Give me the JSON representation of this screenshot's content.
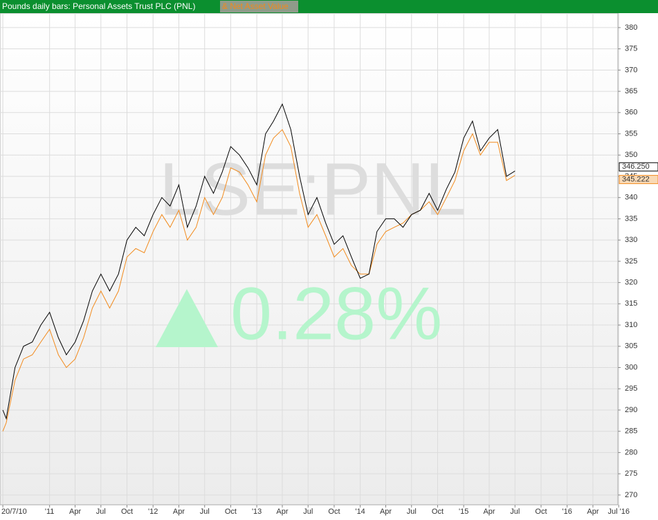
{
  "chart_data": {
    "type": "line",
    "watermark": "LSE:PNL",
    "change": "0.28%",
    "x": [
      "2010-07-20",
      "2010-08",
      "2010-09",
      "2010-10",
      "2010-11",
      "2010-12",
      "2011-01",
      "2011-02",
      "2011-03",
      "2011-04",
      "2011-05",
      "2011-06",
      "2011-07",
      "2011-08",
      "2011-09",
      "2011-10",
      "2011-11",
      "2011-12",
      "2012-01",
      "2012-02",
      "2012-03",
      "2012-04",
      "2012-05",
      "2012-06",
      "2012-07",
      "2012-08",
      "2012-09",
      "2012-10",
      "2012-11",
      "2012-12",
      "2013-01",
      "2013-02",
      "2013-03",
      "2013-04",
      "2013-05",
      "2013-06",
      "2013-07",
      "2013-08",
      "2013-09",
      "2013-10",
      "2013-11",
      "2013-12",
      "2014-01",
      "2014-02",
      "2014-03",
      "2014-04",
      "2014-05",
      "2014-06",
      "2014-07",
      "2014-08",
      "2014-09",
      "2014-10",
      "2014-11",
      "2014-12",
      "2015-01",
      "2015-02",
      "2015-03",
      "2015-04",
      "2015-05",
      "2015-06",
      "2015-07"
    ],
    "series": [
      {
        "name": "Pounds daily bars: Personal Assets Trust PLC (PNL)",
        "color": "#000000",
        "values": [
          290,
          288,
          300,
          305,
          306,
          310,
          313,
          307,
          303,
          306,
          311,
          318,
          322,
          318,
          322,
          330,
          333,
          331,
          336,
          340,
          338,
          343,
          333,
          338,
          345,
          341,
          346,
          352,
          350,
          347,
          343,
          355,
          358,
          362,
          356,
          345,
          336,
          340,
          334,
          329,
          331,
          326,
          321,
          322,
          332,
          335,
          335,
          333,
          336,
          337,
          341,
          337,
          342,
          346,
          354,
          358,
          351,
          354,
          356,
          345,
          346.25
        ],
        "last_label": "346.250"
      },
      {
        "name": "& Net Asset Value",
        "color": "#f28a1c",
        "values": [
          285,
          287,
          297,
          302,
          303,
          306,
          309,
          303,
          300,
          302,
          307,
          314,
          318,
          314,
          318,
          326,
          328,
          327,
          332,
          336,
          333,
          337,
          330,
          333,
          340,
          336,
          340,
          347,
          346,
          343,
          339,
          350,
          354,
          356,
          352,
          341,
          333,
          336,
          331,
          326,
          328,
          324,
          322,
          322,
          329,
          332,
          333,
          334,
          336,
          337,
          339,
          336,
          340,
          344,
          351,
          355,
          350,
          353,
          353,
          344,
          345.222
        ],
        "last_label": "345.222"
      }
    ],
    "xlim": [
      "2010-07-10",
      "2016-06-28"
    ],
    "xticks": [
      {
        "value": "2010-07-20",
        "label": "20/7/10"
      },
      {
        "value": "2011-01",
        "label": "'11"
      },
      {
        "value": "2011-04",
        "label": "Apr"
      },
      {
        "value": "2011-07",
        "label": "Jul"
      },
      {
        "value": "2011-10",
        "label": "Oct"
      },
      {
        "value": "2012-01",
        "label": "'12"
      },
      {
        "value": "2012-04",
        "label": "Apr"
      },
      {
        "value": "2012-07",
        "label": "Jul"
      },
      {
        "value": "2012-10",
        "label": "Oct"
      },
      {
        "value": "2013-01",
        "label": "'13"
      },
      {
        "value": "2013-04",
        "label": "Apr"
      },
      {
        "value": "2013-07",
        "label": "Jul"
      },
      {
        "value": "2013-10",
        "label": "Oct"
      },
      {
        "value": "2014-01",
        "label": "'14"
      },
      {
        "value": "2014-04",
        "label": "Apr"
      },
      {
        "value": "2014-07",
        "label": "Jul"
      },
      {
        "value": "2014-10",
        "label": "Oct"
      },
      {
        "value": "2015-01",
        "label": "'15"
      },
      {
        "value": "2015-04",
        "label": "Apr"
      },
      {
        "value": "2015-07",
        "label": "Jul"
      },
      {
        "value": "2015-10",
        "label": "Oct"
      },
      {
        "value": "2016-01",
        "label": "'16"
      },
      {
        "value": "2016-04",
        "label": "Apr"
      },
      {
        "value": "2016-07",
        "label": "Jul '16"
      }
    ],
    "ylim": [
      267.7,
      383.4
    ],
    "yticks": [
      270,
      275,
      280,
      285,
      290,
      295,
      300,
      305,
      310,
      315,
      320,
      325,
      330,
      335,
      340,
      345,
      350,
      355,
      360,
      365,
      370,
      375,
      380
    ],
    "grid": true
  }
}
